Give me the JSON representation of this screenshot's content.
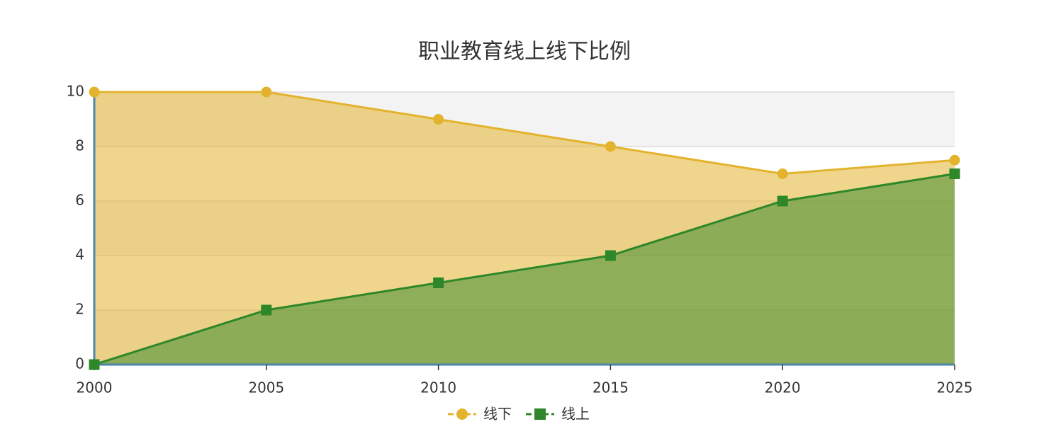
{
  "chart_data": {
    "type": "area",
    "title": "职业教育线上线下比例",
    "x": [
      2000,
      2005,
      2010,
      2015,
      2020,
      2025
    ],
    "xlim": [
      2000,
      2025
    ],
    "xticks": [
      2000,
      2005,
      2010,
      2015,
      2020,
      2025
    ],
    "ylim": [
      0,
      10
    ],
    "yticks": [
      0,
      2,
      4,
      6,
      8,
      10
    ],
    "grid": true,
    "split_area": true,
    "legend": "bottom",
    "series": [
      {
        "name": "线下",
        "color": "#e4b32d",
        "symbol": "circle",
        "values": [
          10,
          10,
          9,
          8,
          7,
          7.5
        ]
      },
      {
        "name": "线上",
        "color": "#2e8728",
        "symbol": "square",
        "values": [
          0,
          2,
          3,
          4,
          6,
          7
        ]
      }
    ]
  }
}
